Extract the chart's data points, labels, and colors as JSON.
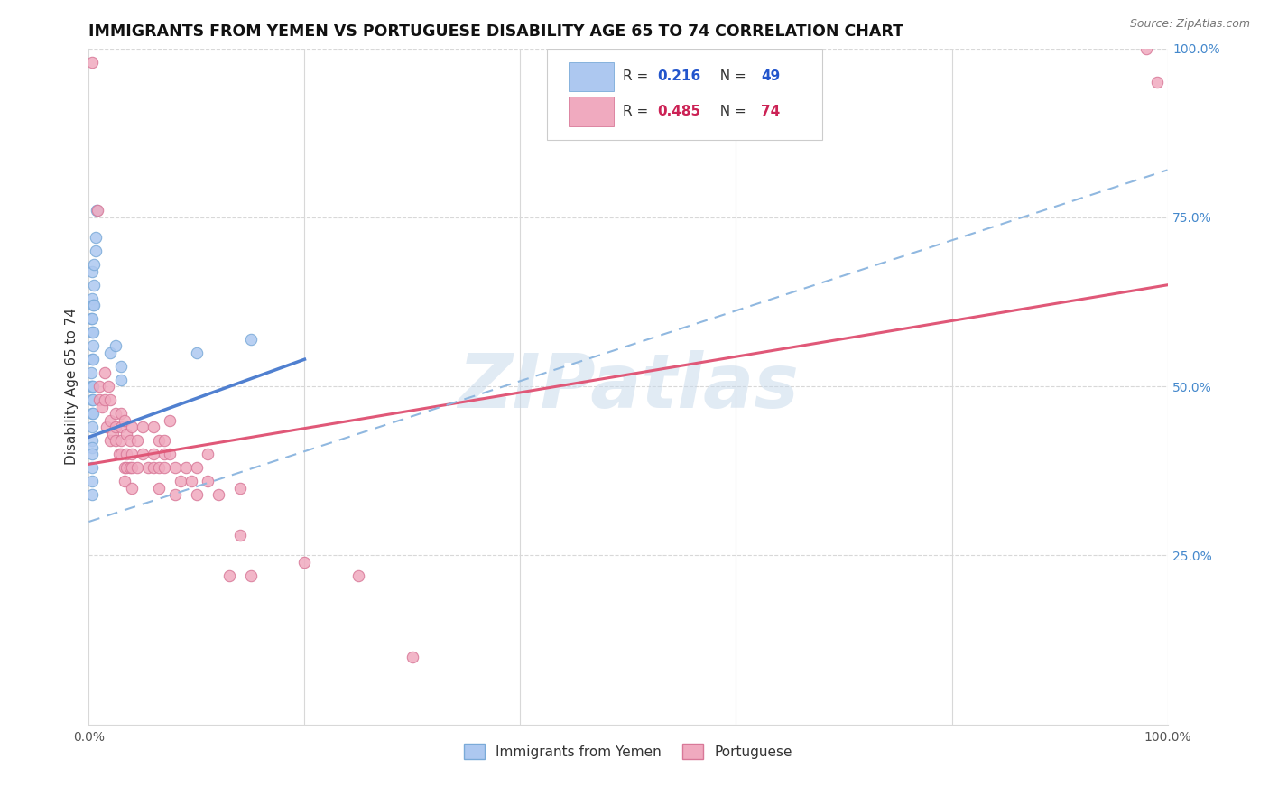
{
  "title": "IMMIGRANTS FROM YEMEN VS PORTUGUESE DISABILITY AGE 65 TO 74 CORRELATION CHART",
  "source": "Source: ZipAtlas.com",
  "ylabel": "Disability Age 65 to 74",
  "watermark": "ZIPatlas",
  "blue_color": "#adc8f0",
  "pink_color": "#f0aabf",
  "blue_edge": "#7aaad8",
  "pink_edge": "#d87898",
  "blue_line": "#5080d0",
  "pink_line": "#e05878",
  "dashed_line": "#90b8d8",
  "grid_color": "#d8d8d8",
  "grid_style": "--",
  "blue_scatter": [
    [
      0.002,
      0.6
    ],
    [
      0.002,
      0.52
    ],
    [
      0.002,
      0.5
    ],
    [
      0.003,
      0.67
    ],
    [
      0.003,
      0.63
    ],
    [
      0.003,
      0.6
    ],
    [
      0.003,
      0.58
    ],
    [
      0.003,
      0.54
    ],
    [
      0.003,
      0.5
    ],
    [
      0.003,
      0.48
    ],
    [
      0.003,
      0.46
    ],
    [
      0.003,
      0.44
    ],
    [
      0.003,
      0.42
    ],
    [
      0.003,
      0.41
    ],
    [
      0.003,
      0.4
    ],
    [
      0.003,
      0.38
    ],
    [
      0.003,
      0.36
    ],
    [
      0.003,
      0.34
    ],
    [
      0.004,
      0.62
    ],
    [
      0.004,
      0.58
    ],
    [
      0.004,
      0.56
    ],
    [
      0.004,
      0.54
    ],
    [
      0.004,
      0.5
    ],
    [
      0.004,
      0.48
    ],
    [
      0.004,
      0.46
    ],
    [
      0.005,
      0.68
    ],
    [
      0.005,
      0.65
    ],
    [
      0.005,
      0.62
    ],
    [
      0.006,
      0.72
    ],
    [
      0.006,
      0.7
    ],
    [
      0.007,
      0.76
    ],
    [
      0.02,
      0.55
    ],
    [
      0.025,
      0.56
    ],
    [
      0.03,
      0.53
    ],
    [
      0.03,
      0.51
    ],
    [
      0.1,
      0.55
    ],
    [
      0.15,
      0.57
    ]
  ],
  "pink_scatter": [
    [
      0.003,
      0.98
    ],
    [
      0.008,
      0.76
    ],
    [
      0.01,
      0.5
    ],
    [
      0.01,
      0.48
    ],
    [
      0.012,
      0.47
    ],
    [
      0.015,
      0.52
    ],
    [
      0.015,
      0.48
    ],
    [
      0.016,
      0.44
    ],
    [
      0.018,
      0.5
    ],
    [
      0.02,
      0.48
    ],
    [
      0.02,
      0.45
    ],
    [
      0.02,
      0.42
    ],
    [
      0.022,
      0.43
    ],
    [
      0.025,
      0.46
    ],
    [
      0.025,
      0.44
    ],
    [
      0.025,
      0.42
    ],
    [
      0.028,
      0.4
    ],
    [
      0.03,
      0.46
    ],
    [
      0.03,
      0.44
    ],
    [
      0.03,
      0.42
    ],
    [
      0.03,
      0.4
    ],
    [
      0.033,
      0.45
    ],
    [
      0.033,
      0.38
    ],
    [
      0.033,
      0.36
    ],
    [
      0.035,
      0.43
    ],
    [
      0.035,
      0.4
    ],
    [
      0.035,
      0.38
    ],
    [
      0.038,
      0.42
    ],
    [
      0.038,
      0.38
    ],
    [
      0.04,
      0.44
    ],
    [
      0.04,
      0.4
    ],
    [
      0.04,
      0.38
    ],
    [
      0.04,
      0.35
    ],
    [
      0.045,
      0.42
    ],
    [
      0.045,
      0.38
    ],
    [
      0.05,
      0.44
    ],
    [
      0.05,
      0.4
    ],
    [
      0.055,
      0.38
    ],
    [
      0.06,
      0.44
    ],
    [
      0.06,
      0.4
    ],
    [
      0.06,
      0.38
    ],
    [
      0.065,
      0.42
    ],
    [
      0.065,
      0.38
    ],
    [
      0.065,
      0.35
    ],
    [
      0.07,
      0.42
    ],
    [
      0.07,
      0.4
    ],
    [
      0.07,
      0.38
    ],
    [
      0.075,
      0.45
    ],
    [
      0.075,
      0.4
    ],
    [
      0.08,
      0.38
    ],
    [
      0.08,
      0.34
    ],
    [
      0.085,
      0.36
    ],
    [
      0.09,
      0.38
    ],
    [
      0.095,
      0.36
    ],
    [
      0.1,
      0.38
    ],
    [
      0.1,
      0.34
    ],
    [
      0.11,
      0.4
    ],
    [
      0.11,
      0.36
    ],
    [
      0.12,
      0.34
    ],
    [
      0.13,
      0.22
    ],
    [
      0.14,
      0.35
    ],
    [
      0.14,
      0.28
    ],
    [
      0.15,
      0.22
    ],
    [
      0.2,
      0.24
    ],
    [
      0.25,
      0.22
    ],
    [
      0.3,
      0.1
    ],
    [
      0.98,
      1.0
    ],
    [
      0.99,
      0.95
    ]
  ],
  "blue_trend_x": [
    0.0,
    0.2
  ],
  "blue_trend_y": [
    0.425,
    0.54
  ],
  "pink_trend_x": [
    0.0,
    1.0
  ],
  "pink_trend_y": [
    0.385,
    0.65
  ],
  "dashed_trend_x": [
    0.0,
    1.0
  ],
  "dashed_trend_y": [
    0.3,
    0.82
  ],
  "xlim": [
    0.0,
    1.0
  ],
  "ylim": [
    0.0,
    1.0
  ],
  "x_tick_labels": [
    "0.0%",
    "100.0%"
  ],
  "x_ticks": [
    0.0,
    1.0
  ],
  "right_y_ticks": [
    0.25,
    0.5,
    0.75,
    1.0
  ],
  "right_y_labels": [
    "25.0%",
    "50.0%",
    "75.0%",
    "100.0%"
  ]
}
